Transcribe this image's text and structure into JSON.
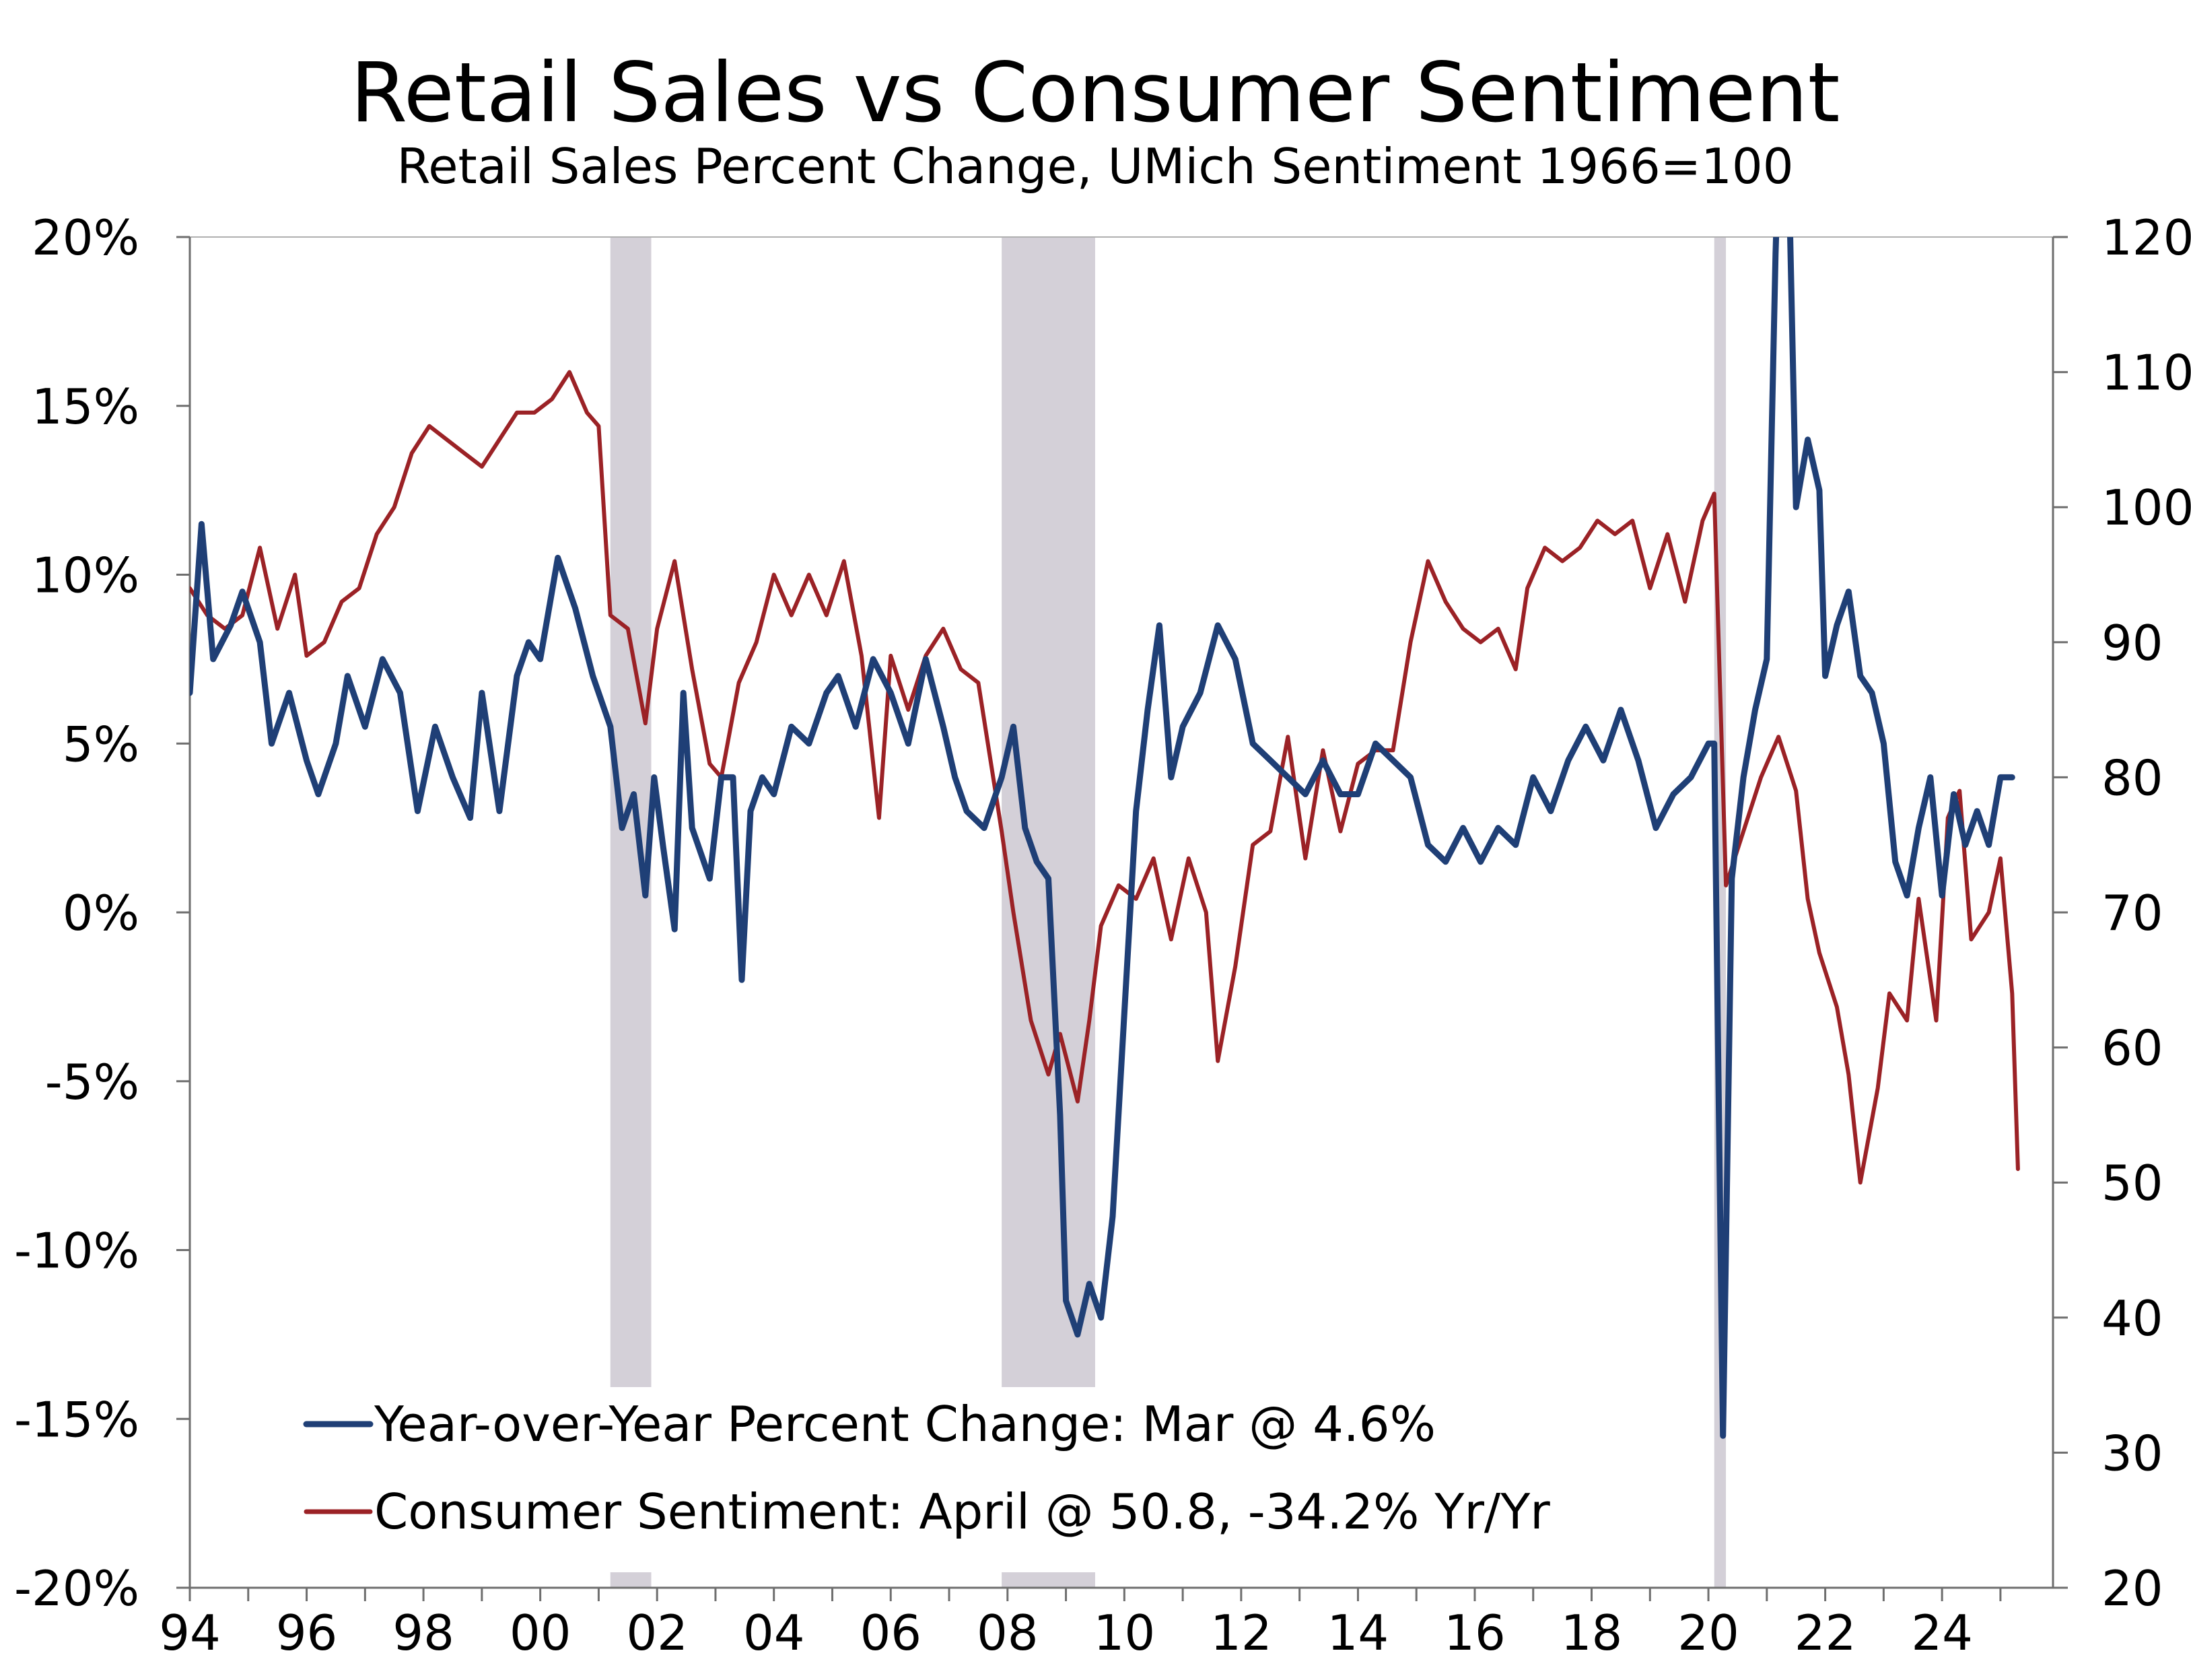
{
  "chart_data": {
    "type": "line",
    "title": "Retail Sales vs Consumer Sentiment",
    "subtitle": "Retail Sales Percent Change, UMich Sentiment 1966=100",
    "xlim": [
      1994,
      2025.9
    ],
    "x_ticks": [
      1994,
      1996,
      1998,
      2000,
      2002,
      2004,
      2006,
      2008,
      2010,
      2012,
      2014,
      2016,
      2018,
      2020,
      2022,
      2024
    ],
    "x_tick_labels": [
      "94",
      "96",
      "98",
      "00",
      "02",
      "04",
      "06",
      "08",
      "10",
      "12",
      "14",
      "16",
      "18",
      "20",
      "22",
      "24"
    ],
    "y_left": {
      "lim": [
        -20,
        20
      ],
      "ticks": [
        20,
        15,
        10,
        5,
        0,
        -5,
        -10,
        -15,
        -20
      ],
      "tick_labels": [
        "20%",
        "15%",
        "10%",
        "5%",
        "0%",
        "-5%",
        "-10%",
        "-15%",
        "-20%"
      ]
    },
    "y_right": {
      "lim": [
        20,
        120
      ],
      "ticks": [
        120,
        110,
        100,
        90,
        80,
        70,
        60,
        50,
        40,
        30,
        20
      ],
      "tick_labels": [
        "120",
        "110",
        "100",
        "90",
        "80",
        "70",
        "60",
        "50",
        "40",
        "30",
        "20"
      ]
    },
    "recessions": [
      [
        2001.2,
        2001.9
      ],
      [
        2007.9,
        2009.5
      ],
      [
        2020.1,
        2020.3
      ]
    ],
    "grid": false,
    "legend_position": "bottom-left",
    "series": [
      {
        "name": "Year-over-Year Percent Change: Mar @ 4.6%",
        "axis": "left",
        "color": "#1f3f76",
        "points": [
          [
            1994.0,
            6.5
          ],
          [
            1994.2,
            11.5
          ],
          [
            1994.4,
            7.5
          ],
          [
            1994.7,
            8.5
          ],
          [
            1994.9,
            9.5
          ],
          [
            1995.2,
            8.0
          ],
          [
            1995.4,
            5.0
          ],
          [
            1995.7,
            6.5
          ],
          [
            1996.0,
            4.5
          ],
          [
            1996.2,
            3.5
          ],
          [
            1996.5,
            5.0
          ],
          [
            1996.7,
            7.0
          ],
          [
            1997.0,
            5.5
          ],
          [
            1997.3,
            7.5
          ],
          [
            1997.6,
            6.5
          ],
          [
            1997.9,
            3.0
          ],
          [
            1998.2,
            5.5
          ],
          [
            1998.5,
            4.0
          ],
          [
            1998.8,
            2.8
          ],
          [
            1999.0,
            6.5
          ],
          [
            1999.3,
            3.0
          ],
          [
            1999.6,
            7.0
          ],
          [
            1999.8,
            8.0
          ],
          [
            2000.0,
            7.5
          ],
          [
            2000.3,
            10.5
          ],
          [
            2000.6,
            9.0
          ],
          [
            2000.9,
            7.0
          ],
          [
            2001.2,
            5.5
          ],
          [
            2001.4,
            2.5
          ],
          [
            2001.6,
            3.5
          ],
          [
            2001.8,
            0.5
          ],
          [
            2001.95,
            4.0
          ],
          [
            2002.1,
            2.0
          ],
          [
            2002.3,
            -0.5
          ],
          [
            2002.45,
            6.5
          ],
          [
            2002.6,
            2.5
          ],
          [
            2002.9,
            1.0
          ],
          [
            2003.1,
            4.0
          ],
          [
            2003.3,
            4.0
          ],
          [
            2003.45,
            -2.0
          ],
          [
            2003.6,
            3.0
          ],
          [
            2003.8,
            4.0
          ],
          [
            2004.0,
            3.5
          ],
          [
            2004.3,
            5.5
          ],
          [
            2004.6,
            5.0
          ],
          [
            2004.9,
            6.5
          ],
          [
            2005.1,
            7.0
          ],
          [
            2005.4,
            5.5
          ],
          [
            2005.7,
            7.5
          ],
          [
            2006.0,
            6.5
          ],
          [
            2006.3,
            5.0
          ],
          [
            2006.6,
            7.5
          ],
          [
            2006.9,
            5.5
          ],
          [
            2007.1,
            4.0
          ],
          [
            2007.3,
            3.0
          ],
          [
            2007.6,
            2.5
          ],
          [
            2007.9,
            4.0
          ],
          [
            2008.1,
            5.5
          ],
          [
            2008.3,
            2.5
          ],
          [
            2008.5,
            1.5
          ],
          [
            2008.7,
            1.0
          ],
          [
            2008.9,
            -6.0
          ],
          [
            2009.0,
            -11.5
          ],
          [
            2009.2,
            -12.5
          ],
          [
            2009.4,
            -11.0
          ],
          [
            2009.6,
            -12.0
          ],
          [
            2009.8,
            -9.0
          ],
          [
            2010.0,
            -3.0
          ],
          [
            2010.2,
            3.0
          ],
          [
            2010.4,
            6.0
          ],
          [
            2010.6,
            8.5
          ],
          [
            2010.8,
            4.0
          ],
          [
            2011.0,
            5.5
          ],
          [
            2011.3,
            6.5
          ],
          [
            2011.6,
            8.5
          ],
          [
            2011.9,
            7.5
          ],
          [
            2012.2,
            5.0
          ],
          [
            2012.5,
            4.5
          ],
          [
            2012.8,
            4.0
          ],
          [
            2013.1,
            3.5
          ],
          [
            2013.4,
            4.5
          ],
          [
            2013.7,
            3.5
          ],
          [
            2014.0,
            3.5
          ],
          [
            2014.3,
            5.0
          ],
          [
            2014.6,
            4.5
          ],
          [
            2014.9,
            4.0
          ],
          [
            2015.2,
            2.0
          ],
          [
            2015.5,
            1.5
          ],
          [
            2015.8,
            2.5
          ],
          [
            2016.1,
            1.5
          ],
          [
            2016.4,
            2.5
          ],
          [
            2016.7,
            2.0
          ],
          [
            2017.0,
            4.0
          ],
          [
            2017.3,
            3.0
          ],
          [
            2017.6,
            4.5
          ],
          [
            2017.9,
            5.5
          ],
          [
            2018.2,
            4.5
          ],
          [
            2018.5,
            6.0
          ],
          [
            2018.8,
            4.5
          ],
          [
            2019.1,
            2.5
          ],
          [
            2019.4,
            3.5
          ],
          [
            2019.7,
            4.0
          ],
          [
            2020.0,
            5.0
          ],
          [
            2020.1,
            5.0
          ],
          [
            2020.25,
            -15.5
          ],
          [
            2020.4,
            1.0
          ],
          [
            2020.6,
            4.0
          ],
          [
            2020.8,
            6.0
          ],
          [
            2021.0,
            7.5
          ],
          [
            2021.15,
            19.5
          ],
          [
            2021.3,
            28.0
          ],
          [
            2021.5,
            12.0
          ],
          [
            2021.7,
            14.0
          ],
          [
            2021.9,
            12.5
          ],
          [
            2022.0,
            7.0
          ],
          [
            2022.2,
            8.5
          ],
          [
            2022.4,
            9.5
          ],
          [
            2022.6,
            7.0
          ],
          [
            2022.8,
            6.5
          ],
          [
            2023.0,
            5.0
          ],
          [
            2023.2,
            1.5
          ],
          [
            2023.4,
            0.5
          ],
          [
            2023.6,
            2.5
          ],
          [
            2023.8,
            4.0
          ],
          [
            2024.0,
            0.5
          ],
          [
            2024.2,
            3.5
          ],
          [
            2024.4,
            2.0
          ],
          [
            2024.6,
            3.0
          ],
          [
            2024.8,
            2.0
          ],
          [
            2025.0,
            4.0
          ],
          [
            2025.2,
            4.0
          ]
        ]
      },
      {
        "name": "Consumer Sentiment: April @ 50.8, -34.2% Yr/Yr",
        "axis": "right",
        "color": "#9b2226",
        "points": [
          [
            1994.0,
            94
          ],
          [
            1994.3,
            92
          ],
          [
            1994.6,
            91
          ],
          [
            1994.9,
            92
          ],
          [
            1995.2,
            97
          ],
          [
            1995.5,
            91
          ],
          [
            1995.8,
            95
          ],
          [
            1996.0,
            89
          ],
          [
            1996.3,
            90
          ],
          [
            1996.6,
            93
          ],
          [
            1996.9,
            94
          ],
          [
            1997.2,
            98
          ],
          [
            1997.5,
            100
          ],
          [
            1997.8,
            104
          ],
          [
            1998.1,
            106
          ],
          [
            1998.4,
            105
          ],
          [
            1998.7,
            104
          ],
          [
            1999.0,
            103
          ],
          [
            1999.3,
            105
          ],
          [
            1999.6,
            107
          ],
          [
            1999.9,
            107
          ],
          [
            2000.2,
            108
          ],
          [
            2000.5,
            110
          ],
          [
            2000.8,
            107
          ],
          [
            2001.0,
            106
          ],
          [
            2001.2,
            92
          ],
          [
            2001.5,
            91
          ],
          [
            2001.8,
            84
          ],
          [
            2002.0,
            91
          ],
          [
            2002.3,
            96
          ],
          [
            2002.6,
            88
          ],
          [
            2002.9,
            81
          ],
          [
            2003.1,
            80
          ],
          [
            2003.4,
            87
          ],
          [
            2003.7,
            90
          ],
          [
            2004.0,
            95
          ],
          [
            2004.3,
            92
          ],
          [
            2004.6,
            95
          ],
          [
            2004.9,
            92
          ],
          [
            2005.2,
            96
          ],
          [
            2005.5,
            89
          ],
          [
            2005.8,
            77
          ],
          [
            2006.0,
            89
          ],
          [
            2006.3,
            85
          ],
          [
            2006.6,
            89
          ],
          [
            2006.9,
            91
          ],
          [
            2007.2,
            88
          ],
          [
            2007.5,
            87
          ],
          [
            2007.9,
            76
          ],
          [
            2008.1,
            70
          ],
          [
            2008.4,
            62
          ],
          [
            2008.7,
            58
          ],
          [
            2008.9,
            61
          ],
          [
            2009.2,
            56
          ],
          [
            2009.4,
            62
          ],
          [
            2009.6,
            69
          ],
          [
            2009.9,
            72
          ],
          [
            2010.2,
            71
          ],
          [
            2010.5,
            74
          ],
          [
            2010.8,
            68
          ],
          [
            2011.1,
            74
          ],
          [
            2011.4,
            70
          ],
          [
            2011.6,
            59
          ],
          [
            2011.9,
            66
          ],
          [
            2012.2,
            75
          ],
          [
            2012.5,
            76
          ],
          [
            2012.8,
            83
          ],
          [
            2013.1,
            74
          ],
          [
            2013.4,
            82
          ],
          [
            2013.7,
            76
          ],
          [
            2014.0,
            81
          ],
          [
            2014.3,
            82
          ],
          [
            2014.6,
            82
          ],
          [
            2014.9,
            90
          ],
          [
            2015.2,
            96
          ],
          [
            2015.5,
            93
          ],
          [
            2015.8,
            91
          ],
          [
            2016.1,
            90
          ],
          [
            2016.4,
            91
          ],
          [
            2016.7,
            88
          ],
          [
            2016.9,
            94
          ],
          [
            2017.2,
            97
          ],
          [
            2017.5,
            96
          ],
          [
            2017.8,
            97
          ],
          [
            2018.1,
            99
          ],
          [
            2018.4,
            98
          ],
          [
            2018.7,
            99
          ],
          [
            2019.0,
            94
          ],
          [
            2019.3,
            98
          ],
          [
            2019.6,
            93
          ],
          [
            2019.9,
            99
          ],
          [
            2020.1,
            101
          ],
          [
            2020.3,
            72
          ],
          [
            2020.6,
            76
          ],
          [
            2020.9,
            80
          ],
          [
            2021.2,
            83
          ],
          [
            2021.5,
            79
          ],
          [
            2021.7,
            71
          ],
          [
            2021.9,
            67
          ],
          [
            2022.2,
            63
          ],
          [
            2022.4,
            58
          ],
          [
            2022.6,
            50
          ],
          [
            2022.9,
            57
          ],
          [
            2023.1,
            64
          ],
          [
            2023.4,
            62
          ],
          [
            2023.6,
            71
          ],
          [
            2023.9,
            62
          ],
          [
            2024.1,
            77
          ],
          [
            2024.3,
            79
          ],
          [
            2024.5,
            68
          ],
          [
            2024.8,
            70
          ],
          [
            2025.0,
            74
          ],
          [
            2025.2,
            64
          ],
          [
            2025.3,
            51
          ]
        ]
      }
    ]
  }
}
